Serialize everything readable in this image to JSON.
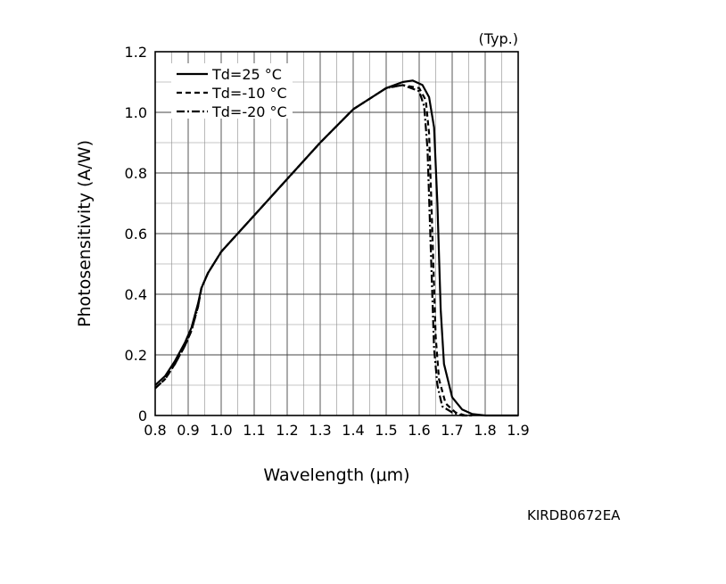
{
  "chart_data": {
    "type": "line",
    "note": "(Typ.)",
    "xlabel": "Wavelength (μm)",
    "ylabel": "Photosensitivity (A/W)",
    "xlim": [
      0.8,
      1.9
    ],
    "ylim": [
      0,
      1.2
    ],
    "grid": true,
    "legend_position": "top-left",
    "x_ticks": [
      0.8,
      0.9,
      1.0,
      1.1,
      1.2,
      1.3,
      1.4,
      1.5,
      1.6,
      1.7,
      1.8,
      1.9
    ],
    "x_tick_labels": [
      "0.8",
      "0.9",
      "1.0",
      "1.1",
      "1.2",
      "1.3",
      "1.4",
      "1.5",
      "1.6",
      "1.7",
      "1.8",
      "1.9"
    ],
    "y_ticks": [
      0,
      0.2,
      0.4,
      0.6,
      0.8,
      1.0,
      1.2
    ],
    "y_tick_labels": [
      "0",
      "0.2",
      "0.4",
      "0.6",
      "0.8",
      "1.0",
      "1.2"
    ],
    "series": [
      {
        "name": "Td=25 °C",
        "style": "solid",
        "x": [
          0.8,
          0.83,
          0.86,
          0.89,
          0.91,
          0.93,
          0.94,
          0.96,
          1.0,
          1.1,
          1.2,
          1.3,
          1.4,
          1.5,
          1.55,
          1.58,
          1.61,
          1.63,
          1.645,
          1.655,
          1.665,
          1.675,
          1.7,
          1.73,
          1.76,
          1.8,
          1.9
        ],
        "y": [
          0.1,
          0.13,
          0.18,
          0.24,
          0.29,
          0.37,
          0.42,
          0.47,
          0.54,
          0.66,
          0.78,
          0.9,
          1.01,
          1.08,
          1.1,
          1.105,
          1.09,
          1.05,
          0.95,
          0.7,
          0.35,
          0.17,
          0.06,
          0.02,
          0.005,
          0.0,
          0.0
        ]
      },
      {
        "name": "Td=-10 °C",
        "style": "dashed",
        "x": [
          0.8,
          0.83,
          0.86,
          0.89,
          0.91,
          0.93,
          0.94,
          0.96,
          1.0,
          1.1,
          1.2,
          1.3,
          1.4,
          1.5,
          1.55,
          1.6,
          1.62,
          1.63,
          1.64,
          1.65,
          1.66,
          1.68,
          1.71,
          1.74,
          1.76
        ],
        "y": [
          0.09,
          0.12,
          0.17,
          0.23,
          0.28,
          0.36,
          0.42,
          0.47,
          0.54,
          0.66,
          0.78,
          0.9,
          1.01,
          1.08,
          1.09,
          1.08,
          1.04,
          0.93,
          0.6,
          0.26,
          0.12,
          0.04,
          0.01,
          0.0,
          0.0
        ]
      },
      {
        "name": "Td=-20 °C",
        "style": "dashdot",
        "x": [
          0.8,
          0.83,
          0.86,
          0.89,
          0.91,
          0.93,
          0.94,
          0.96,
          1.0,
          1.1,
          1.2,
          1.3,
          1.4,
          1.5,
          1.55,
          1.6,
          1.615,
          1.625,
          1.635,
          1.645,
          1.655,
          1.67,
          1.7,
          1.73,
          1.75
        ],
        "y": [
          0.09,
          0.12,
          0.17,
          0.23,
          0.28,
          0.36,
          0.42,
          0.47,
          0.54,
          0.66,
          0.78,
          0.9,
          1.01,
          1.08,
          1.09,
          1.07,
          1.02,
          0.88,
          0.55,
          0.22,
          0.1,
          0.03,
          0.01,
          0.0,
          0.0
        ]
      }
    ]
  },
  "figure_code": "KIRDB0672EA"
}
